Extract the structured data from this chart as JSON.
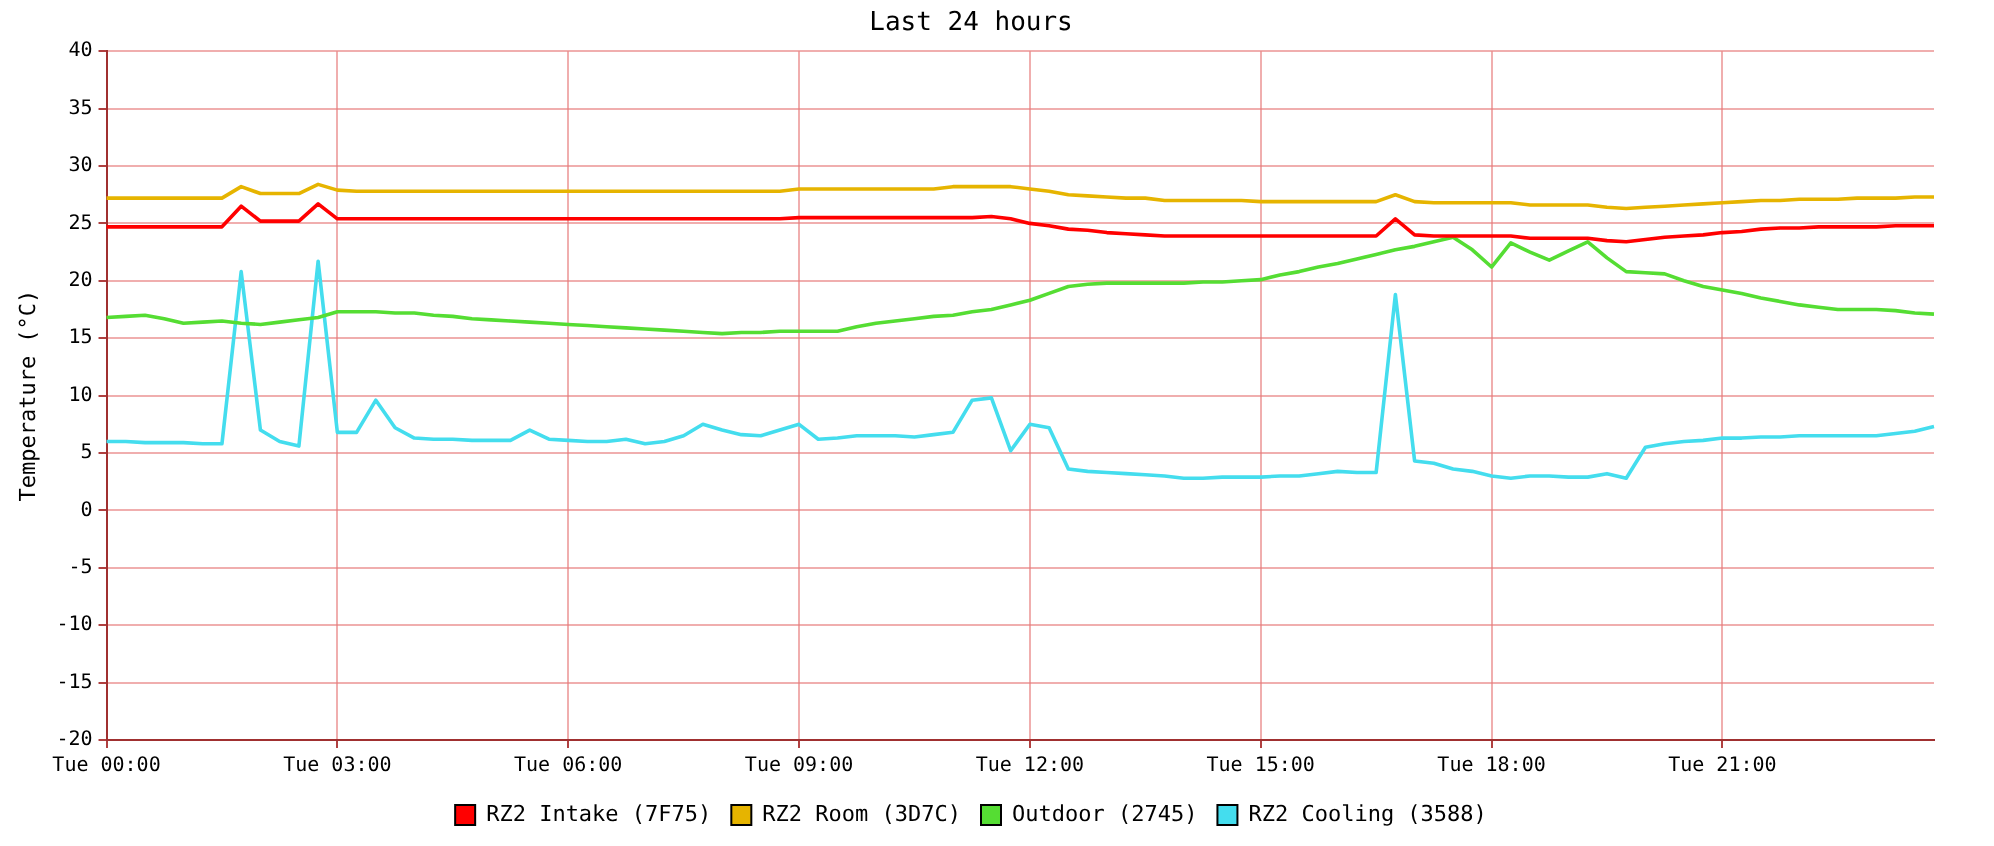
{
  "chart_data": {
    "type": "line",
    "title": "Last 24 hours",
    "ylabel": "Temperature (°C)",
    "categories": [
      "Tue 00:00",
      null,
      null,
      null,
      null,
      null,
      null,
      null,
      null,
      null,
      null,
      null,
      "Tue 03:00",
      null,
      null,
      null,
      null,
      null,
      null,
      null,
      null,
      null,
      null,
      null,
      "Tue 06:00",
      null,
      null,
      null,
      null,
      null,
      null,
      null,
      null,
      null,
      null,
      null,
      "Tue 09:00",
      null,
      null,
      null,
      null,
      null,
      null,
      null,
      null,
      null,
      null,
      null,
      "Tue 12:00",
      null,
      null,
      null,
      null,
      null,
      null,
      null,
      null,
      null,
      null,
      null,
      "Tue 15:00",
      null,
      null,
      null,
      null,
      null,
      null,
      null,
      null,
      null,
      null,
      null,
      "Tue 18:00",
      null,
      null,
      null,
      null,
      null,
      null,
      null,
      null,
      null,
      null,
      null,
      "Tue 21:00",
      null,
      null,
      null,
      null,
      null,
      null,
      null,
      null,
      null,
      null,
      null
    ],
    "ylim": [
      -20,
      40
    ],
    "yticks": [
      -20,
      -15,
      -10,
      -5,
      0,
      5,
      10,
      15,
      20,
      25,
      30,
      35,
      40
    ],
    "grid": true,
    "legend": "bottom",
    "marker": "none",
    "line_style": "solid",
    "series": [
      {
        "name": "RZ2 Intake (7F75)",
        "color": "#ff0000",
        "values": [
          24.7,
          24.7,
          24.7,
          24.7,
          24.7,
          24.7,
          24.7,
          26.5,
          25.2,
          25.2,
          25.2,
          26.7,
          25.4,
          25.4,
          25.4,
          25.4,
          25.4,
          25.4,
          25.4,
          25.4,
          25.4,
          25.4,
          25.4,
          25.4,
          25.4,
          25.4,
          25.4,
          25.4,
          25.4,
          25.4,
          25.4,
          25.4,
          25.4,
          25.4,
          25.4,
          25.4,
          25.5,
          25.5,
          25.5,
          25.5,
          25.5,
          25.5,
          25.5,
          25.5,
          25.5,
          25.5,
          25.6,
          25.4,
          25.0,
          24.8,
          24.5,
          24.4,
          24.2,
          24.1,
          24.0,
          23.9,
          23.9,
          23.9,
          23.9,
          23.9,
          23.9,
          23.9,
          23.9,
          23.9,
          23.9,
          23.9,
          23.9,
          25.4,
          24.0,
          23.9,
          23.9,
          23.9,
          23.9,
          23.9,
          23.7,
          23.7,
          23.7,
          23.7,
          23.5,
          23.4,
          23.6,
          23.8,
          23.9,
          24.0,
          24.2,
          24.3,
          24.5,
          24.6,
          24.6,
          24.7,
          24.7,
          24.7,
          24.7,
          24.8,
          24.8,
          24.8
        ]
      },
      {
        "name": "RZ2 Room (3D7C)",
        "color": "#e6b400",
        "values": [
          27.2,
          27.2,
          27.2,
          27.2,
          27.2,
          27.2,
          27.2,
          28.2,
          27.6,
          27.6,
          27.6,
          28.4,
          27.9,
          27.8,
          27.8,
          27.8,
          27.8,
          27.8,
          27.8,
          27.8,
          27.8,
          27.8,
          27.8,
          27.8,
          27.8,
          27.8,
          27.8,
          27.8,
          27.8,
          27.8,
          27.8,
          27.8,
          27.8,
          27.8,
          27.8,
          27.8,
          28.0,
          28.0,
          28.0,
          28.0,
          28.0,
          28.0,
          28.0,
          28.0,
          28.2,
          28.2,
          28.2,
          28.2,
          28.0,
          27.8,
          27.5,
          27.4,
          27.3,
          27.2,
          27.2,
          27.0,
          27.0,
          27.0,
          27.0,
          27.0,
          26.9,
          26.9,
          26.9,
          26.9,
          26.9,
          26.9,
          26.9,
          27.5,
          26.9,
          26.8,
          26.8,
          26.8,
          26.8,
          26.8,
          26.6,
          26.6,
          26.6,
          26.6,
          26.4,
          26.3,
          26.4,
          26.5,
          26.6,
          26.7,
          26.8,
          26.9,
          27.0,
          27.0,
          27.1,
          27.1,
          27.1,
          27.2,
          27.2,
          27.2,
          27.3,
          27.3
        ]
      },
      {
        "name": "Outdoor (2745)",
        "color": "#55dd33",
        "values": [
          16.8,
          16.9,
          17.0,
          16.7,
          16.3,
          16.4,
          16.5,
          16.3,
          16.2,
          16.4,
          16.6,
          16.8,
          17.3,
          17.3,
          17.3,
          17.2,
          17.2,
          17.0,
          16.9,
          16.7,
          16.6,
          16.5,
          16.4,
          16.3,
          16.2,
          16.1,
          16.0,
          15.9,
          15.8,
          15.7,
          15.6,
          15.5,
          15.4,
          15.5,
          15.5,
          15.6,
          15.6,
          15.6,
          15.6,
          16.0,
          16.3,
          16.5,
          16.7,
          16.9,
          17.0,
          17.3,
          17.5,
          17.9,
          18.3,
          18.9,
          19.5,
          19.7,
          19.8,
          19.8,
          19.8,
          19.8,
          19.8,
          19.9,
          19.9,
          20.0,
          20.1,
          20.5,
          20.8,
          21.2,
          21.5,
          21.9,
          22.3,
          22.7,
          23.0,
          23.4,
          23.8,
          22.7,
          21.2,
          23.3,
          22.5,
          21.8,
          22.6,
          23.4,
          22.0,
          20.8,
          20.7,
          20.6,
          20.0,
          19.5,
          19.2,
          18.9,
          18.5,
          18.2,
          17.9,
          17.7,
          17.5,
          17.5,
          17.5,
          17.4,
          17.2,
          17.1
        ]
      },
      {
        "name": "RZ2 Cooling (3588)",
        "color": "#44ddee",
        "values": [
          6.0,
          6.0,
          5.9,
          5.9,
          5.9,
          5.8,
          5.8,
          20.8,
          7.0,
          6.0,
          5.6,
          21.7,
          6.8,
          6.8,
          9.6,
          7.2,
          6.3,
          6.2,
          6.2,
          6.1,
          6.1,
          6.1,
          7.0,
          6.2,
          6.1,
          6.0,
          6.0,
          6.2,
          5.8,
          6.0,
          6.5,
          7.5,
          7.0,
          6.6,
          6.5,
          7.0,
          7.5,
          6.2,
          6.3,
          6.5,
          6.5,
          6.5,
          6.4,
          6.6,
          6.8,
          9.6,
          9.8,
          5.2,
          7.5,
          7.2,
          3.6,
          3.4,
          3.3,
          3.2,
          3.1,
          3.0,
          2.8,
          2.8,
          2.9,
          2.9,
          2.9,
          3.0,
          3.0,
          3.2,
          3.4,
          3.3,
          3.3,
          18.8,
          4.3,
          4.1,
          3.6,
          3.4,
          3.0,
          2.8,
          3.0,
          3.0,
          2.9,
          2.9,
          3.2,
          2.8,
          5.5,
          5.8,
          6.0,
          6.1,
          6.3,
          6.3,
          6.4,
          6.4,
          6.5,
          6.5,
          6.5,
          6.5,
          6.5,
          6.7,
          6.9,
          7.3
        ]
      }
    ]
  }
}
